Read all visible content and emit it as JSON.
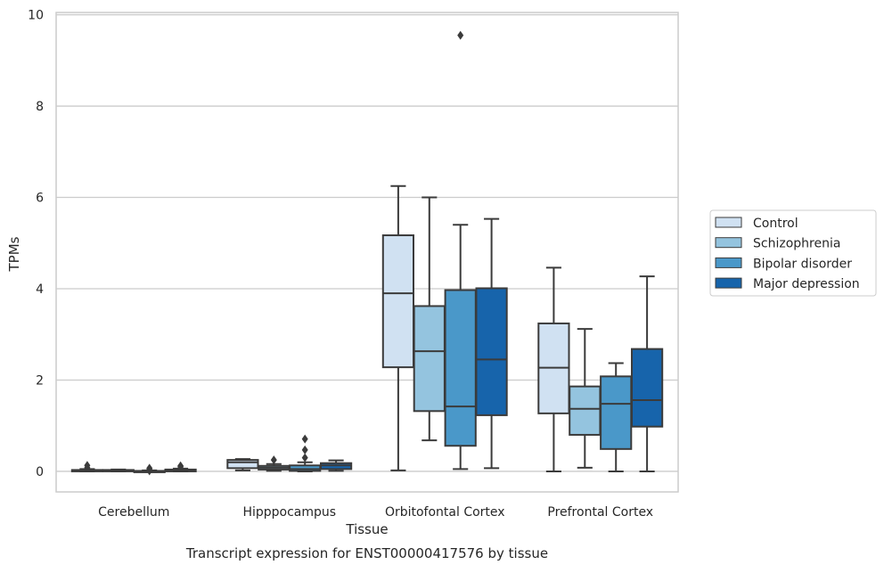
{
  "chart_data": {
    "type": "box",
    "caption": "Transcript expression for ENST00000417576 by tissue",
    "xlabel": "Tissue",
    "ylabel": "TPMs",
    "ylim": [
      -0.45,
      10.05
    ],
    "yticks": [
      0,
      2,
      4,
      6,
      8,
      10
    ],
    "categories": [
      "Cerebellum",
      "Hipppocampus",
      "Orbitofontal Cortex",
      "Prefrontal Cortex"
    ],
    "grid": "horizontal",
    "legend_position": "right",
    "series": [
      {
        "name": "Control",
        "color": "#d0e1f2",
        "boxes": [
          {
            "whislo": 0.0,
            "q1": 0.0,
            "med": 0.01,
            "q3": 0.03,
            "whishi": 0.05,
            "fliers": [
              0.13,
              0.08
            ]
          },
          {
            "whislo": 0.02,
            "q1": 0.07,
            "med": 0.2,
            "q3": 0.25,
            "whishi": 0.27,
            "fliers": []
          },
          {
            "whislo": 0.02,
            "q1": 2.28,
            "med": 3.9,
            "q3": 5.17,
            "whishi": 6.25,
            "fliers": []
          },
          {
            "whislo": 0.0,
            "q1": 1.27,
            "med": 2.27,
            "q3": 3.24,
            "whishi": 4.46,
            "fliers": []
          }
        ]
      },
      {
        "name": "Schizophrenia",
        "color": "#94c4df",
        "boxes": [
          {
            "whislo": 0.0,
            "q1": 0.0,
            "med": 0.01,
            "q3": 0.03,
            "whishi": 0.04,
            "fliers": []
          },
          {
            "whislo": 0.01,
            "q1": 0.04,
            "med": 0.08,
            "q3": 0.12,
            "whishi": 0.16,
            "fliers": [
              0.25
            ]
          },
          {
            "whislo": 0.68,
            "q1": 1.32,
            "med": 2.63,
            "q3": 3.62,
            "whishi": 6.0,
            "fliers": []
          },
          {
            "whislo": 0.08,
            "q1": 0.8,
            "med": 1.37,
            "q3": 1.86,
            "whishi": 3.12,
            "fliers": []
          }
        ]
      },
      {
        "name": "Bipolar disorder",
        "color": "#4a98c9",
        "boxes": [
          {
            "whislo": 0.0,
            "q1": 0.0,
            "med": 0.0,
            "q3": 0.01,
            "whishi": 0.02,
            "fliers": [
              0.07,
              0.04,
              0.01
            ]
          },
          {
            "whislo": 0.0,
            "q1": 0.01,
            "med": 0.05,
            "q3": 0.13,
            "whishi": 0.2,
            "fliers": [
              0.71,
              0.47,
              0.3
            ]
          },
          {
            "whislo": 0.05,
            "q1": 0.56,
            "med": 1.42,
            "q3": 3.97,
            "whishi": 5.4,
            "fliers": [
              9.55
            ]
          },
          {
            "whislo": 0.0,
            "q1": 0.49,
            "med": 1.48,
            "q3": 2.08,
            "whishi": 2.37,
            "fliers": []
          }
        ]
      },
      {
        "name": "Major depression",
        "color": "#1764ab",
        "boxes": [
          {
            "whislo": 0.0,
            "q1": 0.0,
            "med": 0.01,
            "q3": 0.04,
            "whishi": 0.06,
            "fliers": [
              0.12,
              0.1
            ]
          },
          {
            "whislo": 0.01,
            "q1": 0.05,
            "med": 0.13,
            "q3": 0.18,
            "whishi": 0.24,
            "fliers": []
          },
          {
            "whislo": 0.07,
            "q1": 1.23,
            "med": 2.45,
            "q3": 4.01,
            "whishi": 5.53,
            "fliers": []
          },
          {
            "whislo": 0.0,
            "q1": 0.98,
            "med": 1.56,
            "q3": 2.68,
            "whishi": 4.27,
            "fliers": []
          }
        ]
      }
    ]
  }
}
